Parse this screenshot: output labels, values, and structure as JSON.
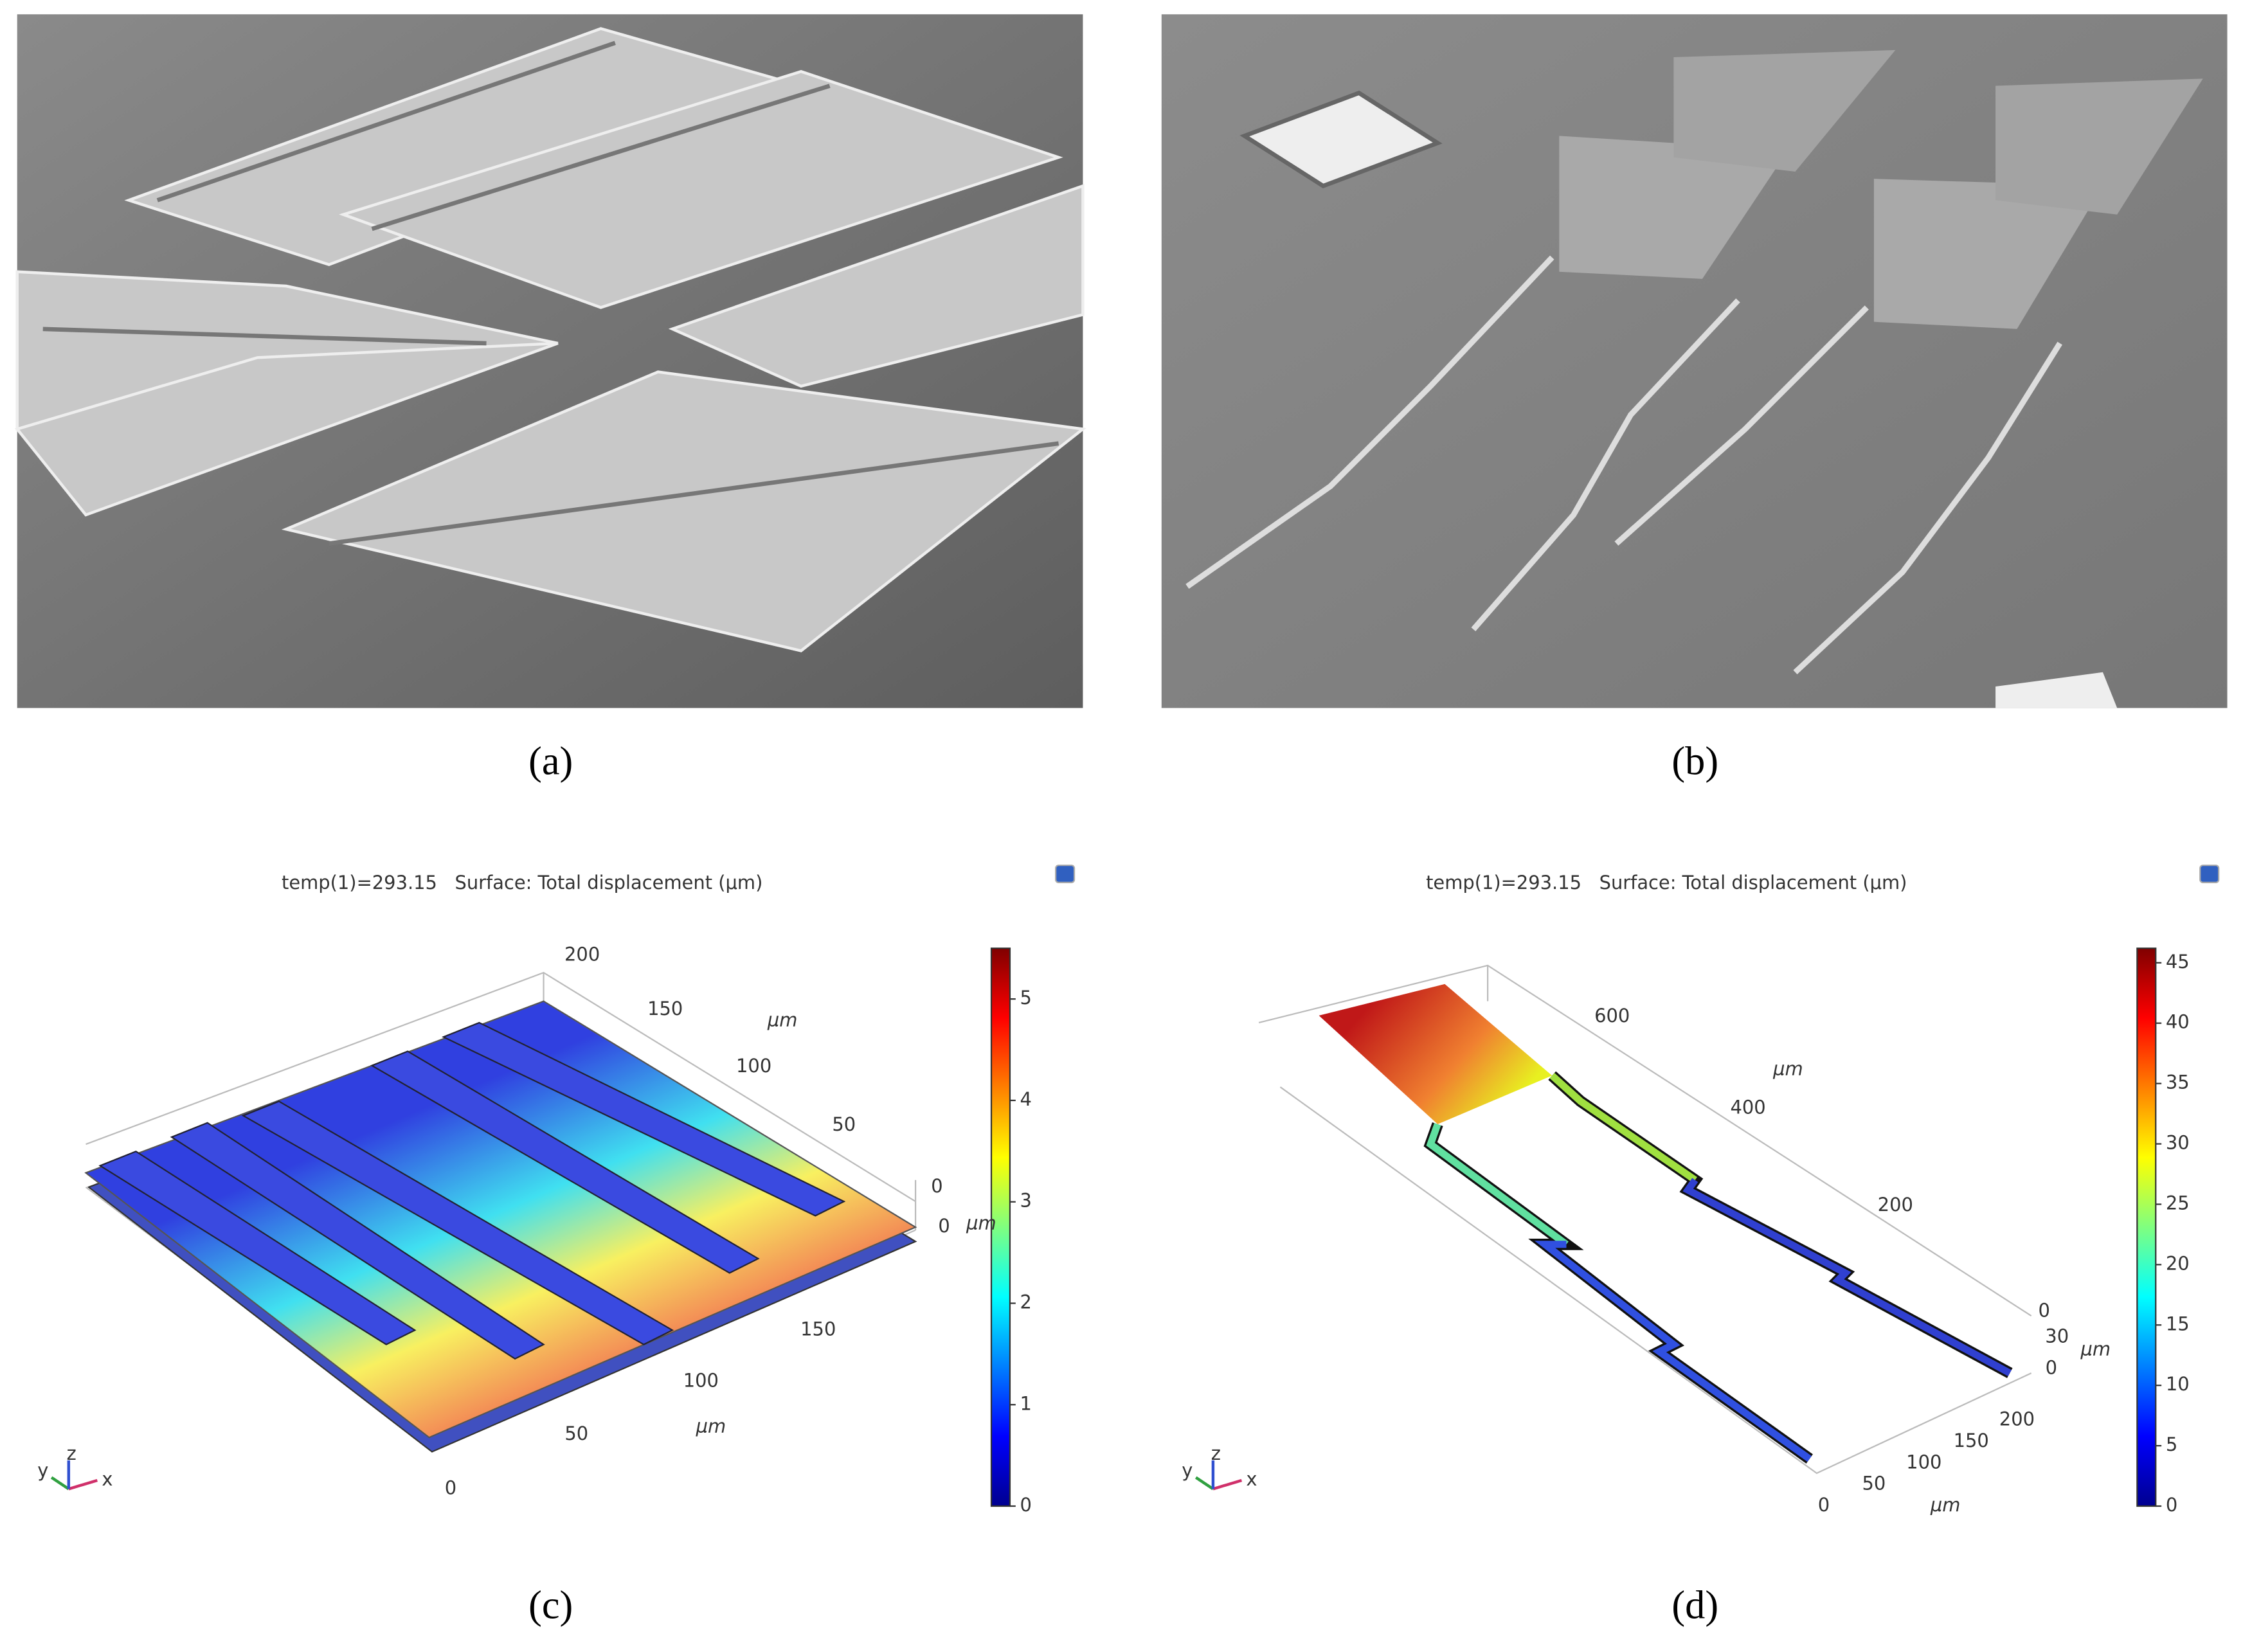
{
  "panels": [
    {
      "label": "(a)"
    },
    {
      "label": "(b)"
    },
    {
      "label": "(c)",
      "title": "temp(1)=293.15   Surface: Total displacement (μm)",
      "colorbar": {
        "lim": [
          0,
          5.5
        ],
        "ticks": [
          0,
          1,
          2,
          3,
          4,
          5
        ]
      },
      "axes": [
        {
          "unit": "μm",
          "ticks": [
            200,
            150,
            100,
            50,
            0
          ]
        },
        {
          "unit": "μm",
          "ticks": [
            0
          ]
        },
        {
          "unit": "μm",
          "ticks": [
            150,
            100,
            50,
            0
          ]
        }
      ],
      "triad": [
        "x",
        "y",
        "z"
      ]
    },
    {
      "label": "(d)",
      "title": "temp(1)=293.15   Surface: Total displacement (μm)",
      "colorbar": {
        "lim": [
          0,
          46.2
        ],
        "ticks": [
          0,
          5,
          10,
          15,
          20,
          25,
          30,
          35,
          40,
          45
        ]
      },
      "axes": [
        {
          "unit": "μm",
          "ticks": [
            600,
            400,
            200
          ]
        },
        {
          "unit": "μm",
          "ticks": [
            0,
            30,
            0
          ]
        },
        {
          "unit": "μm",
          "ticks": [
            200,
            150,
            100,
            50,
            0
          ]
        }
      ],
      "triad": [
        "x",
        "y",
        "z"
      ]
    }
  ]
}
